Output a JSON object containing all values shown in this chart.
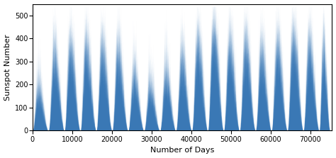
{
  "fill_color": "#3a78b5",
  "xlabel": "Number of Days",
  "ylabel": "Sunspot Number",
  "xlim": [
    0,
    75500
  ],
  "ylim": [
    0,
    550
  ],
  "yticks": [
    0,
    100,
    200,
    300,
    400,
    500
  ],
  "xticks": [
    0,
    10000,
    20000,
    30000,
    40000,
    50000,
    60000,
    70000
  ],
  "figsize": [
    4.74,
    2.23
  ],
  "dpi": 100,
  "n_days": 75000,
  "cycle_period": 4015,
  "cycle_amplitudes": [
    200,
    380,
    420,
    430,
    420,
    390,
    270,
    210,
    270,
    350,
    450,
    530,
    430,
    450,
    390,
    430,
    500,
    430,
    410,
    210
  ],
  "noise_seed": 123
}
